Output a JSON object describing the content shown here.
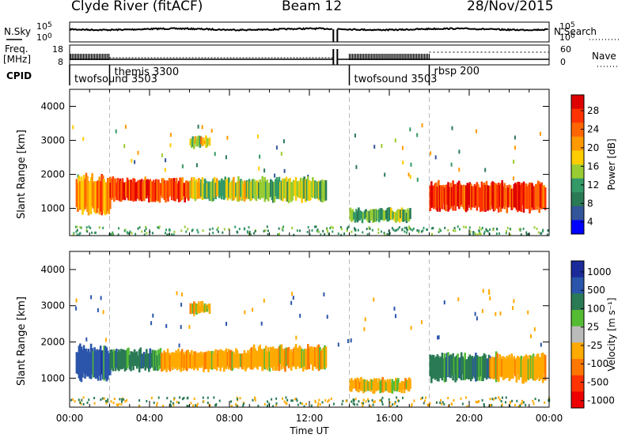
{
  "header": {
    "title": "Clyde River (fitACF)",
    "beam": "Beam 12",
    "date": "28/Nov/2015"
  },
  "top_panels": {
    "nsky_label": "N.Sky",
    "nsearch_label": "N.Search",
    "freq_label_1": "Freq.",
    "freq_label_2": "[MHz]",
    "nave_label": "Nave",
    "cpid_label": "CPID",
    "nsky_ticks": [
      "10^5",
      "10^0"
    ],
    "nsearch_ticks": [
      "10^5",
      "10^0"
    ],
    "freq_ticks": [
      "18",
      "8"
    ],
    "nave_ticks": [
      "60",
      "0"
    ],
    "cpid_segments": [
      {
        "label": "twofsound 3503",
        "start_h": 0.0
      },
      {
        "label": "themis 3300",
        "start_h": 2.0
      },
      {
        "label": "twofsound 3503",
        "start_h": 14.0
      },
      {
        "label": "rbsp 200",
        "start_h": 18.0
      }
    ],
    "data_gap_h": [
      13.2,
      13.4
    ]
  },
  "x_axis": {
    "label": "Time UT",
    "ticks": [
      "00:00",
      "04:00",
      "08:00",
      "12:00",
      "16:00",
      "20:00",
      "00:00"
    ],
    "range_h": [
      0,
      24
    ]
  },
  "power_colorbar": {
    "label": "Power [dB]",
    "ticks": [
      "28",
      "24",
      "20",
      "16",
      "12",
      "8",
      "4"
    ],
    "colors": [
      "#dd0000",
      "#ff3300",
      "#ff6600",
      "#ff9900",
      "#ffcc00",
      "#99cc33",
      "#339966",
      "#2a7a55",
      "#335599",
      "#0000ff"
    ]
  },
  "velocity_colorbar": {
    "label": "Velocity [m s⁻¹]",
    "ticks": [
      "1000",
      "500",
      "100",
      "25",
      "-25",
      "-100",
      "-500",
      "-1000"
    ],
    "colors": [
      "#1a2a99",
      "#2a55aa",
      "#2a7a55",
      "#55bb33",
      "#bbbbbb",
      "#ffaa00",
      "#ff7700",
      "#ff3300",
      "#ee0000"
    ]
  },
  "chart_data": [
    {
      "type": "heatmap",
      "title": "Power",
      "xlabel": "Time UT",
      "ylabel": "Slant Range [km]",
      "xlim_h": [
        0,
        24
      ],
      "ylim_km": [
        200,
        4500
      ],
      "yticks": [
        "1000",
        "2000",
        "3000",
        "4000"
      ],
      "blobs": [
        {
          "t": [
            0.3,
            2.0
          ],
          "r": [
            800,
            2000
          ],
          "v": 22
        },
        {
          "t": [
            2.0,
            6.0
          ],
          "r": [
            1200,
            1900
          ],
          "v": 26
        },
        {
          "t": [
            6.0,
            9.0
          ],
          "r": [
            1200,
            1900
          ],
          "v": 16
        },
        {
          "t": [
            9.0,
            12.8
          ],
          "r": [
            1200,
            1900
          ],
          "v": 14
        },
        {
          "t": [
            14.0,
            17.0
          ],
          "r": [
            600,
            1000
          ],
          "v": 13
        },
        {
          "t": [
            18.0,
            23.8
          ],
          "r": [
            900,
            1800
          ],
          "v": 27
        },
        {
          "t": [
            6.0,
            7.0
          ],
          "r": [
            2800,
            3100
          ],
          "v": 18
        }
      ]
    },
    {
      "type": "heatmap",
      "title": "Velocity",
      "xlabel": "Time UT",
      "ylabel": "Slant Range [km]",
      "xlim_h": [
        0,
        24
      ],
      "ylim_km": [
        200,
        4500
      ],
      "yticks": [
        "1000",
        "2000",
        "3000",
        "4000"
      ],
      "blobs": [
        {
          "t": [
            0.3,
            2.0
          ],
          "r": [
            900,
            1900
          ],
          "v": 500
        },
        {
          "t": [
            2.0,
            4.5
          ],
          "r": [
            1200,
            1800
          ],
          "v": 100
        },
        {
          "t": [
            4.5,
            9.0
          ],
          "r": [
            1200,
            1800
          ],
          "v": -100
        },
        {
          "t": [
            9.0,
            12.8
          ],
          "r": [
            1200,
            1900
          ],
          "v": -100
        },
        {
          "t": [
            14.0,
            17.0
          ],
          "r": [
            600,
            1000
          ],
          "v": -100
        },
        {
          "t": [
            18.0,
            21.0
          ],
          "r": [
            900,
            1700
          ],
          "v": 100
        },
        {
          "t": [
            21.0,
            23.8
          ],
          "r": [
            900,
            1700
          ],
          "v": -100
        },
        {
          "t": [
            6.0,
            7.0
          ],
          "r": [
            2800,
            3100
          ],
          "v": -100
        }
      ]
    }
  ]
}
